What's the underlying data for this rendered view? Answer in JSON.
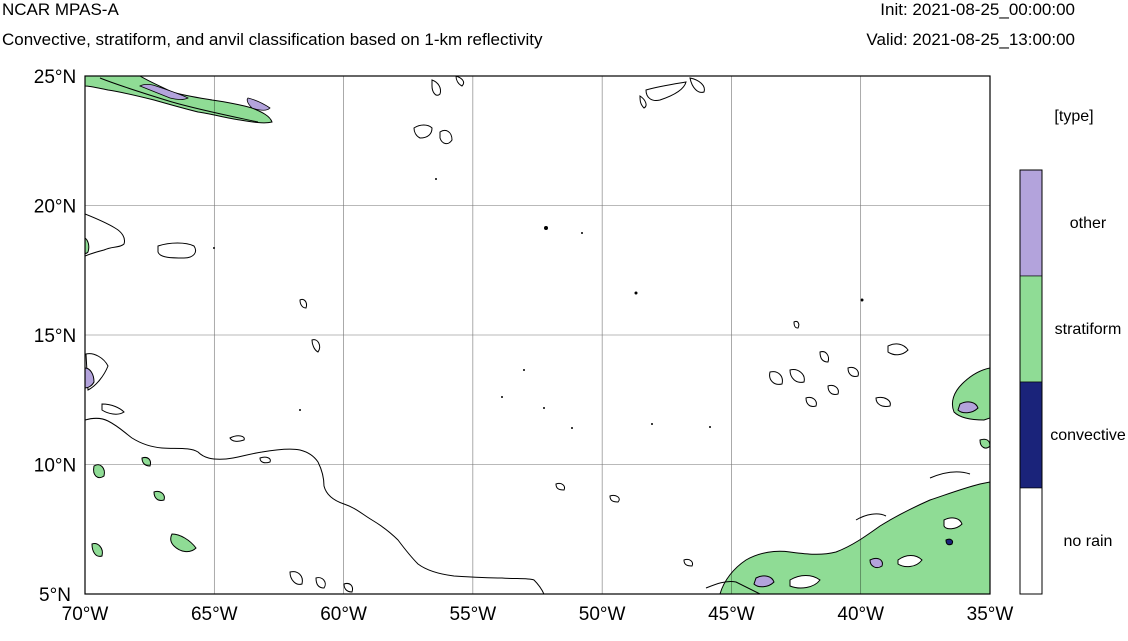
{
  "header": {
    "title": "NCAR MPAS-A",
    "subtitle": "Convective, stratiform, and anvil classification based on 1-km reflectivity",
    "init": "Init: 2021-08-25_00:00:00",
    "valid": "Valid: 2021-08-25_13:00:00"
  },
  "map": {
    "lon_ticks": [
      "70°W",
      "65°W",
      "60°W",
      "55°W",
      "50°W",
      "45°W",
      "40°W",
      "35°W"
    ],
    "lat_ticks": [
      "25°N",
      "20°N",
      "15°N",
      "10°N",
      "5°N"
    ],
    "lon_range": [
      -70,
      -35
    ],
    "lat_range": [
      5,
      25
    ],
    "grid": true
  },
  "legend": {
    "title": "[type]",
    "items": [
      {
        "label": "other",
        "color": "#b3a3dc"
      },
      {
        "label": "stratiform",
        "color": "#8fdc95"
      },
      {
        "label": "convective",
        "color": "#1a237a"
      },
      {
        "label": "no rain",
        "color": "#ffffff"
      }
    ]
  }
}
